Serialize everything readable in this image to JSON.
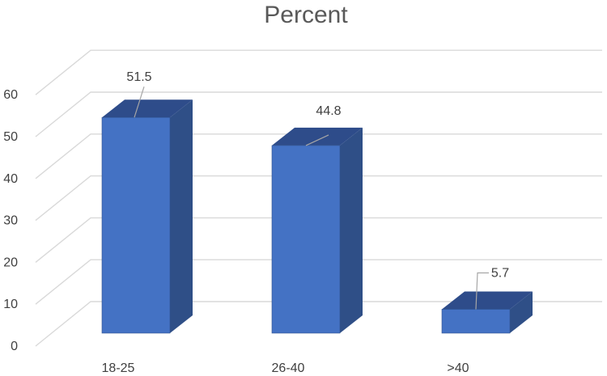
{
  "chart_data": {
    "type": "bar",
    "title": "Percent",
    "categories": [
      "18-25",
      "26-40",
      ">40"
    ],
    "values": [
      51.5,
      44.8,
      5.7
    ],
    "data_labels": [
      "51.5",
      "44.8",
      "5.7"
    ],
    "y_ticks": [
      "0",
      "10",
      "20",
      "30",
      "40",
      "50",
      "60"
    ],
    "ylim": [
      0,
      60
    ],
    "xlabel": "",
    "ylabel": "",
    "grid": true,
    "legend": false,
    "style": "3d-column",
    "colors": {
      "bar_front": "#4472c4",
      "bar_side": "#2f4f87",
      "bar_top": "#2e4c8a",
      "bar_edge": "#2f528f",
      "grid": "#d9d9d9"
    }
  }
}
